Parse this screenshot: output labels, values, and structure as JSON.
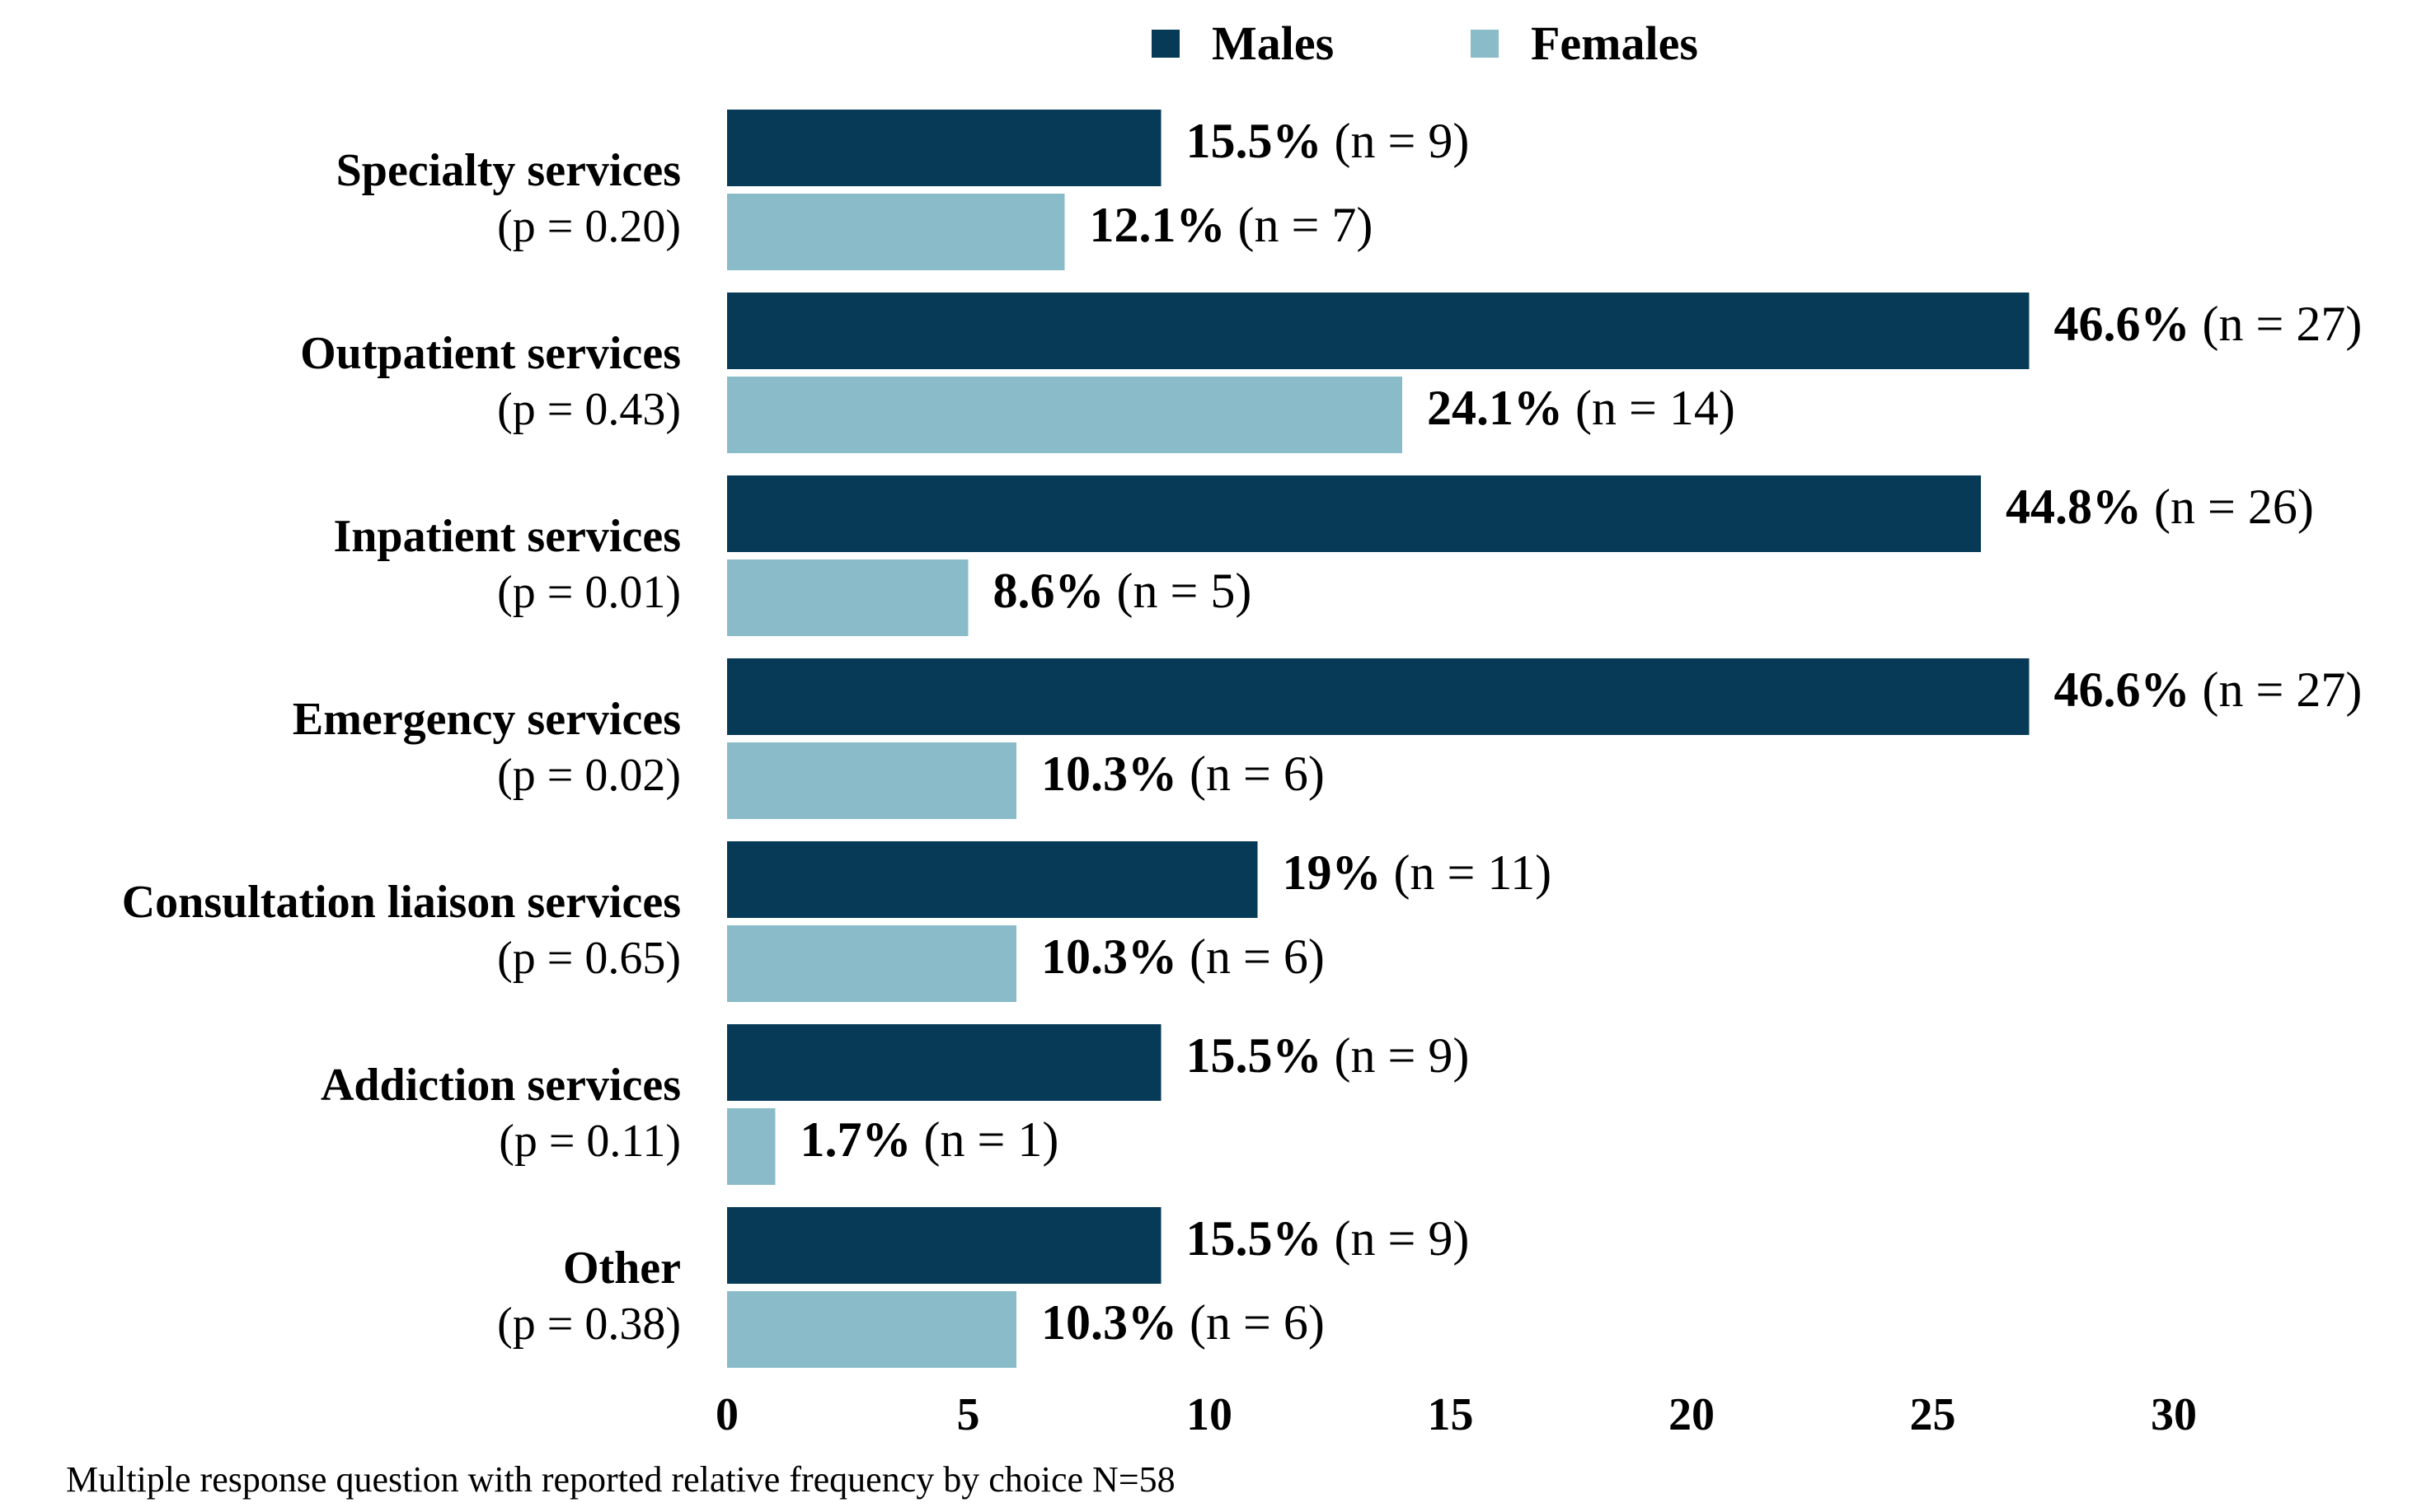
{
  "chart_data": {
    "type": "bar",
    "orientation": "horizontal",
    "categories": [
      {
        "name": "Specialty services",
        "p_label": "(p = 0.20)"
      },
      {
        "name": "Outpatient services",
        "p_label": "(p = 0.43)"
      },
      {
        "name": "Inpatient services",
        "p_label": "(p = 0.01)"
      },
      {
        "name": "Emergency services",
        "p_label": "(p = 0.02)"
      },
      {
        "name": "Consultation liaison services",
        "p_label": "(p = 0.65)"
      },
      {
        "name": "Addiction services",
        "p_label": "(p = 0.11)"
      },
      {
        "name": "Other",
        "p_label": "(p = 0.38)"
      }
    ],
    "series": [
      {
        "name": "Males",
        "color": "#063a57",
        "values": [
          9,
          27,
          26,
          27,
          11,
          9,
          9
        ],
        "pct_labels": [
          "15.5%",
          "46.6%",
          "44.8%",
          "46.6%",
          "19%",
          "15.5%",
          "15.5%"
        ],
        "n_labels": [
          "(n = 9)",
          "(n = 27)",
          "(n = 26)",
          "(n = 27)",
          "(n = 11)",
          "(n = 9)",
          "(n = 9)"
        ]
      },
      {
        "name": "Females",
        "color": "#89bcc8",
        "values": [
          7,
          14,
          5,
          6,
          6,
          1,
          6
        ],
        "pct_labels": [
          "12.1%",
          "24.1%",
          "8.6%",
          "10.3%",
          "10.3%",
          "1.7%",
          "10.3%"
        ],
        "n_labels": [
          "(n = 7)",
          "(n = 14)",
          "(n = 5)",
          "(n = 6)",
          "(n = 6)",
          "(n = 1)",
          "(n = 6)"
        ]
      }
    ],
    "xlim": [
      0,
      30
    ],
    "xticks": [
      "0",
      "5",
      "10",
      "15",
      "20",
      "25",
      "30"
    ],
    "legend_position": "top-center",
    "grid": false,
    "title": "",
    "xlabel": "",
    "ylabel": "",
    "footnote": "Multiple response question with reported relative frequency by choice N=58"
  }
}
